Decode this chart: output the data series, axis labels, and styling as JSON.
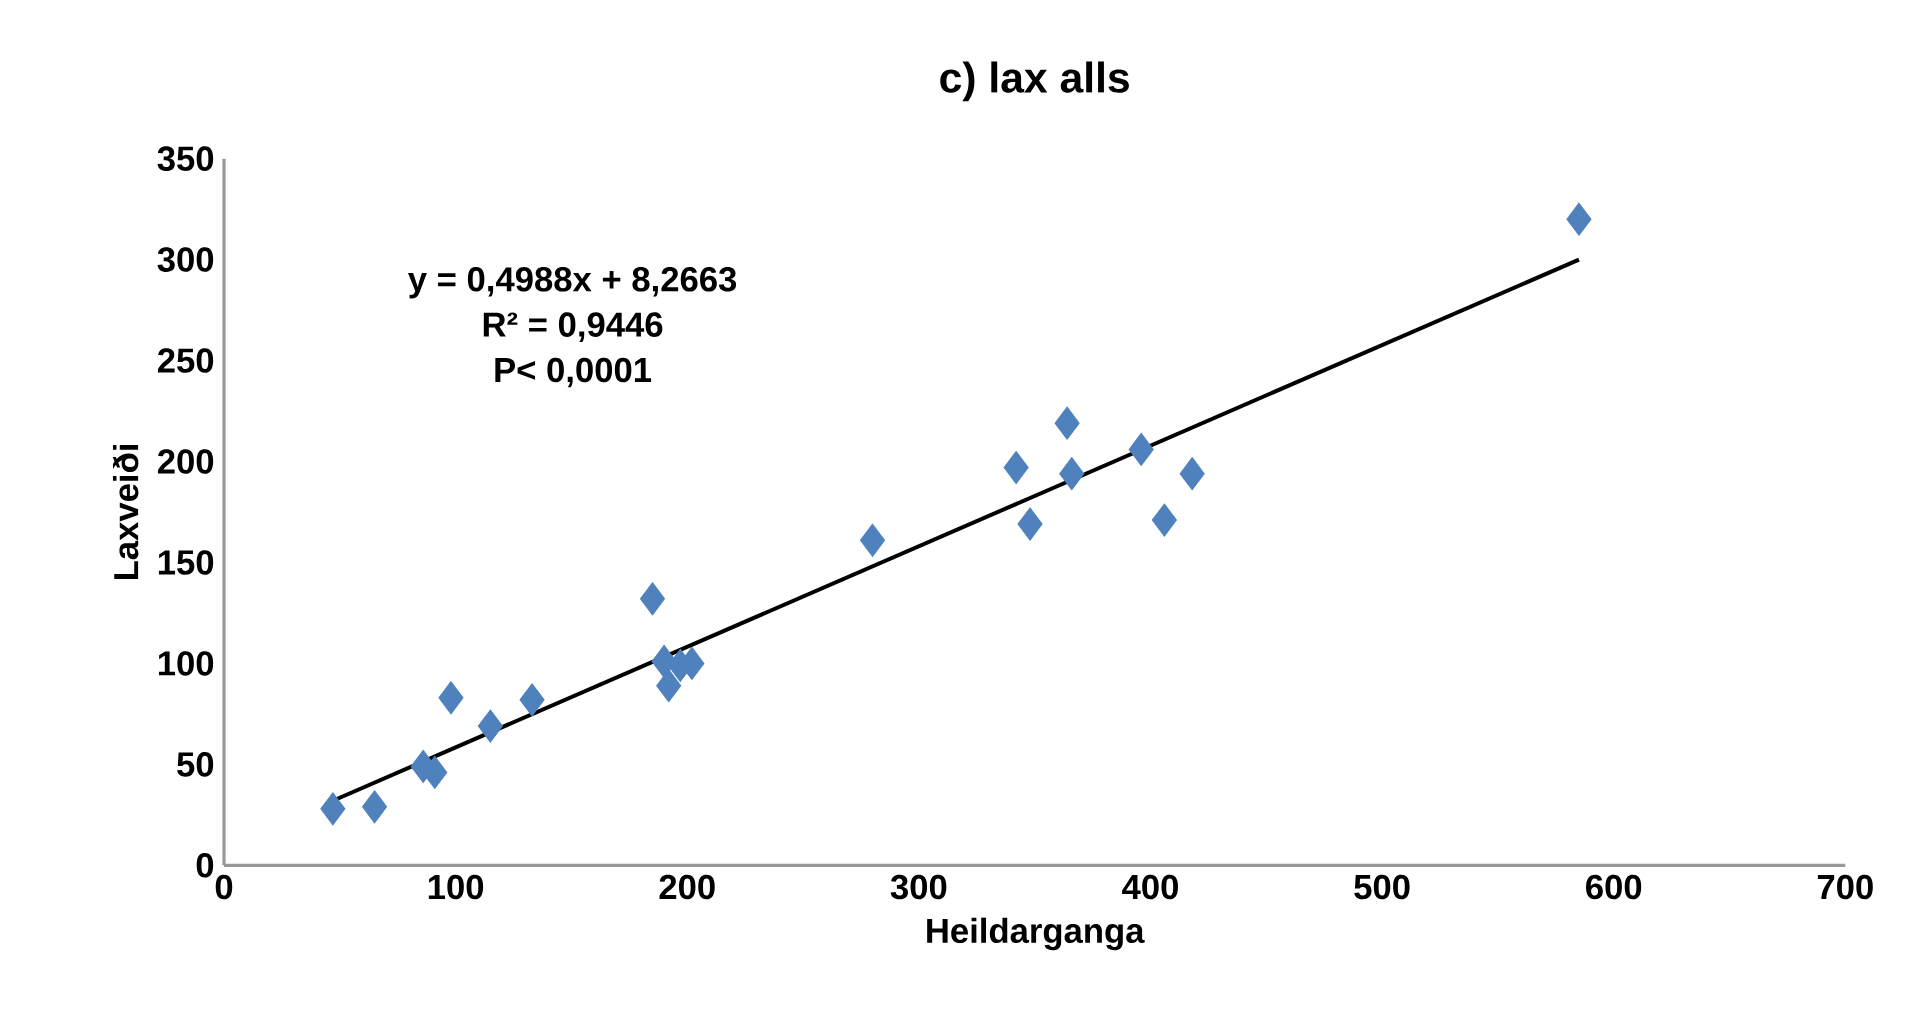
{
  "chart_data": {
    "type": "scatter",
    "title": "c) lax alls",
    "xlabel": "Heildarganga",
    "ylabel": "Laxveiði",
    "xlim": [
      0,
      700
    ],
    "xticks": [
      0,
      100,
      200,
      300,
      400,
      500,
      600,
      700
    ],
    "ylim": [
      0,
      350
    ],
    "yticks": [
      0,
      50,
      100,
      150,
      200,
      250,
      300,
      350
    ],
    "marker": "diamond",
    "annotations": [
      "y = 0,4988x + 8,2663",
      "R² = 0,9446",
      "P< 0,0001"
    ],
    "series": [
      {
        "color": "#4f81bd",
        "x": [
          47,
          65,
          86,
          91,
          98,
          115,
          133,
          185,
          190,
          192,
          197,
          202,
          280,
          342,
          348,
          364,
          366,
          396,
          406,
          418,
          585
        ],
        "values": [
          28,
          29,
          49,
          46,
          83,
          69,
          82,
          132,
          101,
          89,
          99,
          100,
          161,
          197,
          169,
          219,
          194,
          206,
          171,
          194,
          320
        ]
      },
      {
        "type": "line",
        "color": "#000000",
        "marker": "none",
        "line_style": "solid",
        "x": [
          47,
          585
        ],
        "values": [
          32,
          300
        ]
      }
    ]
  }
}
